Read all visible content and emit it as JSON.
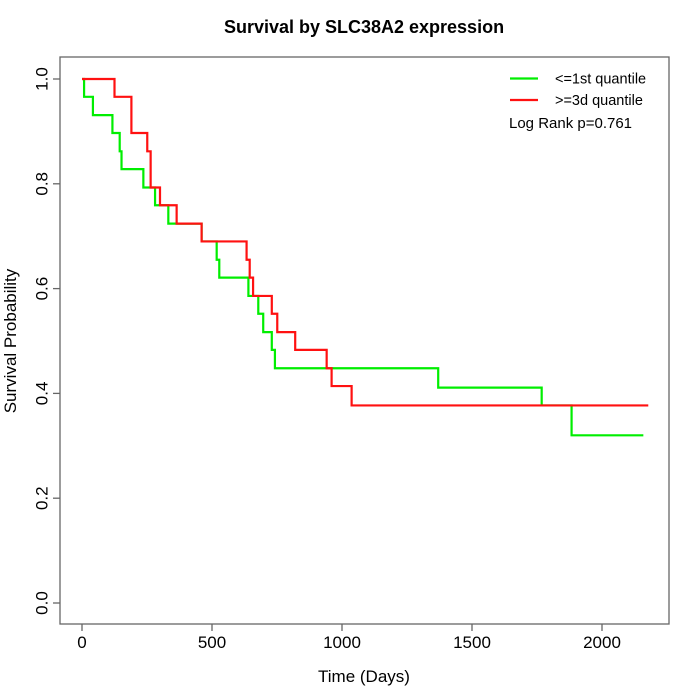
{
  "title": "Survival by SLC38A2 expression",
  "axes": {
    "x": {
      "label": "Time (Days)",
      "tick_labels": [
        "0",
        "500",
        "1000",
        "1500",
        "2000"
      ],
      "tick_values": [
        0,
        500,
        1000,
        1500,
        2000
      ]
    },
    "y": {
      "label": "Survival Probability",
      "tick_labels": [
        "0.0",
        "0.2",
        "0.4",
        "0.6",
        "0.8",
        "1.0"
      ],
      "tick_values": [
        0.0,
        0.2,
        0.4,
        0.6,
        0.8,
        1.0
      ]
    }
  },
  "legend": {
    "items": [
      {
        "label": "<=1st quantile",
        "color": "#00ee00"
      },
      {
        "label": ">=3d quantile",
        "color": "#ff1111"
      }
    ],
    "annotation": "Log Rank p=0.761"
  },
  "colors": {
    "curve_low": "#00ee00",
    "curve_high": "#ff1111",
    "axis": "#666666",
    "text": "#000000"
  },
  "chart_data": {
    "type": "line",
    "subtype": "kaplan-meier-step",
    "title": "Survival by SLC38A2 expression",
    "xlabel": "Time (Days)",
    "ylabel": "Survival Probability",
    "xlim": [
      0,
      2200
    ],
    "ylim": [
      0,
      1
    ],
    "grid": false,
    "legend_position": "top-right",
    "log_rank_p": 0.761,
    "x_ticks": [
      0,
      500,
      1000,
      1500,
      2000
    ],
    "y_ticks": [
      0.0,
      0.2,
      0.4,
      0.6,
      0.8,
      1.0
    ],
    "series": [
      {
        "name": "<=1st quantile",
        "color": "#00ee00",
        "end_day": 2159,
        "steps": [
          [
            0,
            1.0
          ],
          [
            8,
            0.966
          ],
          [
            42,
            0.931
          ],
          [
            117,
            0.897
          ],
          [
            145,
            0.862
          ],
          [
            152,
            0.828
          ],
          [
            236,
            0.793
          ],
          [
            281,
            0.759
          ],
          [
            332,
            0.724
          ],
          [
            460,
            0.69
          ],
          [
            518,
            0.655
          ],
          [
            528,
            0.621
          ],
          [
            640,
            0.586
          ],
          [
            678,
            0.552
          ],
          [
            697,
            0.517
          ],
          [
            730,
            0.483
          ],
          [
            742,
            0.448
          ],
          [
            1370,
            0.411
          ],
          [
            1768,
            0.377
          ],
          [
            1883,
            0.32
          ]
        ]
      },
      {
        "name": ">=3d quantile",
        "color": "#ff1111",
        "end_day": 2178,
        "steps": [
          [
            0,
            1.0
          ],
          [
            125,
            0.966
          ],
          [
            190,
            0.897
          ],
          [
            251,
            0.862
          ],
          [
            264,
            0.793
          ],
          [
            300,
            0.759
          ],
          [
            364,
            0.724
          ],
          [
            460,
            0.69
          ],
          [
            633,
            0.655
          ],
          [
            645,
            0.621
          ],
          [
            658,
            0.586
          ],
          [
            730,
            0.552
          ],
          [
            751,
            0.517
          ],
          [
            820,
            0.483
          ],
          [
            941,
            0.448
          ],
          [
            960,
            0.414
          ],
          [
            1037,
            0.377
          ]
        ]
      }
    ]
  }
}
